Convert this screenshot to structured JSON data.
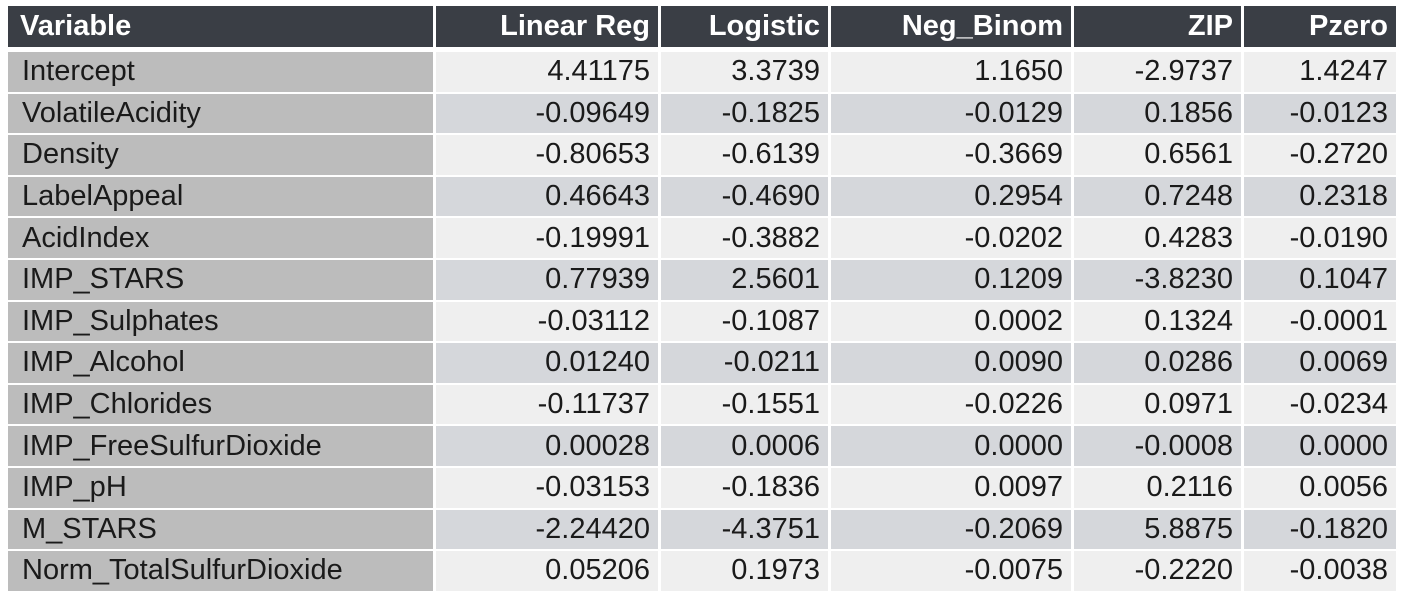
{
  "table": {
    "headers": [
      "Variable",
      "Linear Reg",
      "Logistic",
      "Neg_Binom",
      "ZIP",
      "Pzero"
    ],
    "rows": [
      [
        "Intercept",
        "4.41175",
        "3.3739",
        "1.1650",
        "-2.9737",
        "1.4247"
      ],
      [
        "VolatileAcidity",
        "-0.09649",
        "-0.1825",
        "-0.0129",
        "0.1856",
        "-0.0123"
      ],
      [
        "Density",
        "-0.80653",
        "-0.6139",
        "-0.3669",
        "0.6561",
        "-0.2720"
      ],
      [
        "LabelAppeal",
        "0.46643",
        "-0.4690",
        "0.2954",
        "0.7248",
        "0.2318"
      ],
      [
        "AcidIndex",
        "-0.19991",
        "-0.3882",
        "-0.0202",
        "0.4283",
        "-0.0190"
      ],
      [
        "IMP_STARS",
        "0.77939",
        "2.5601",
        "0.1209",
        "-3.8230",
        "0.1047"
      ],
      [
        "IMP_Sulphates",
        "-0.03112",
        "-0.1087",
        "0.0002",
        "0.1324",
        "-0.0001"
      ],
      [
        "IMP_Alcohol",
        "0.01240",
        "-0.0211",
        "0.0090",
        "0.0286",
        "0.0069"
      ],
      [
        "IMP_Chlorides",
        "-0.11737",
        "-0.1551",
        "-0.0226",
        "0.0971",
        "-0.0234"
      ],
      [
        "IMP_FreeSulfurDioxide",
        "0.00028",
        "0.0006",
        "0.0000",
        "-0.0008",
        "0.0000"
      ],
      [
        "IMP_pH",
        "-0.03153",
        "-0.1836",
        "0.0097",
        "0.2116",
        "0.0056"
      ],
      [
        "M_STARS",
        "-2.24420",
        "-4.3751",
        "-0.2069",
        "5.8875",
        "-0.1820"
      ],
      [
        "Norm_TotalSulfurDioxide",
        "0.05206",
        "0.1973",
        "-0.0075",
        "-0.2220",
        "-0.0038"
      ]
    ]
  },
  "colors": {
    "header_bg": "#3a3e45",
    "header_text": "#ffffff",
    "variable_col_bg": "#bcbcbc",
    "row_light": "#efefef",
    "row_dark": "#d5d7db"
  }
}
